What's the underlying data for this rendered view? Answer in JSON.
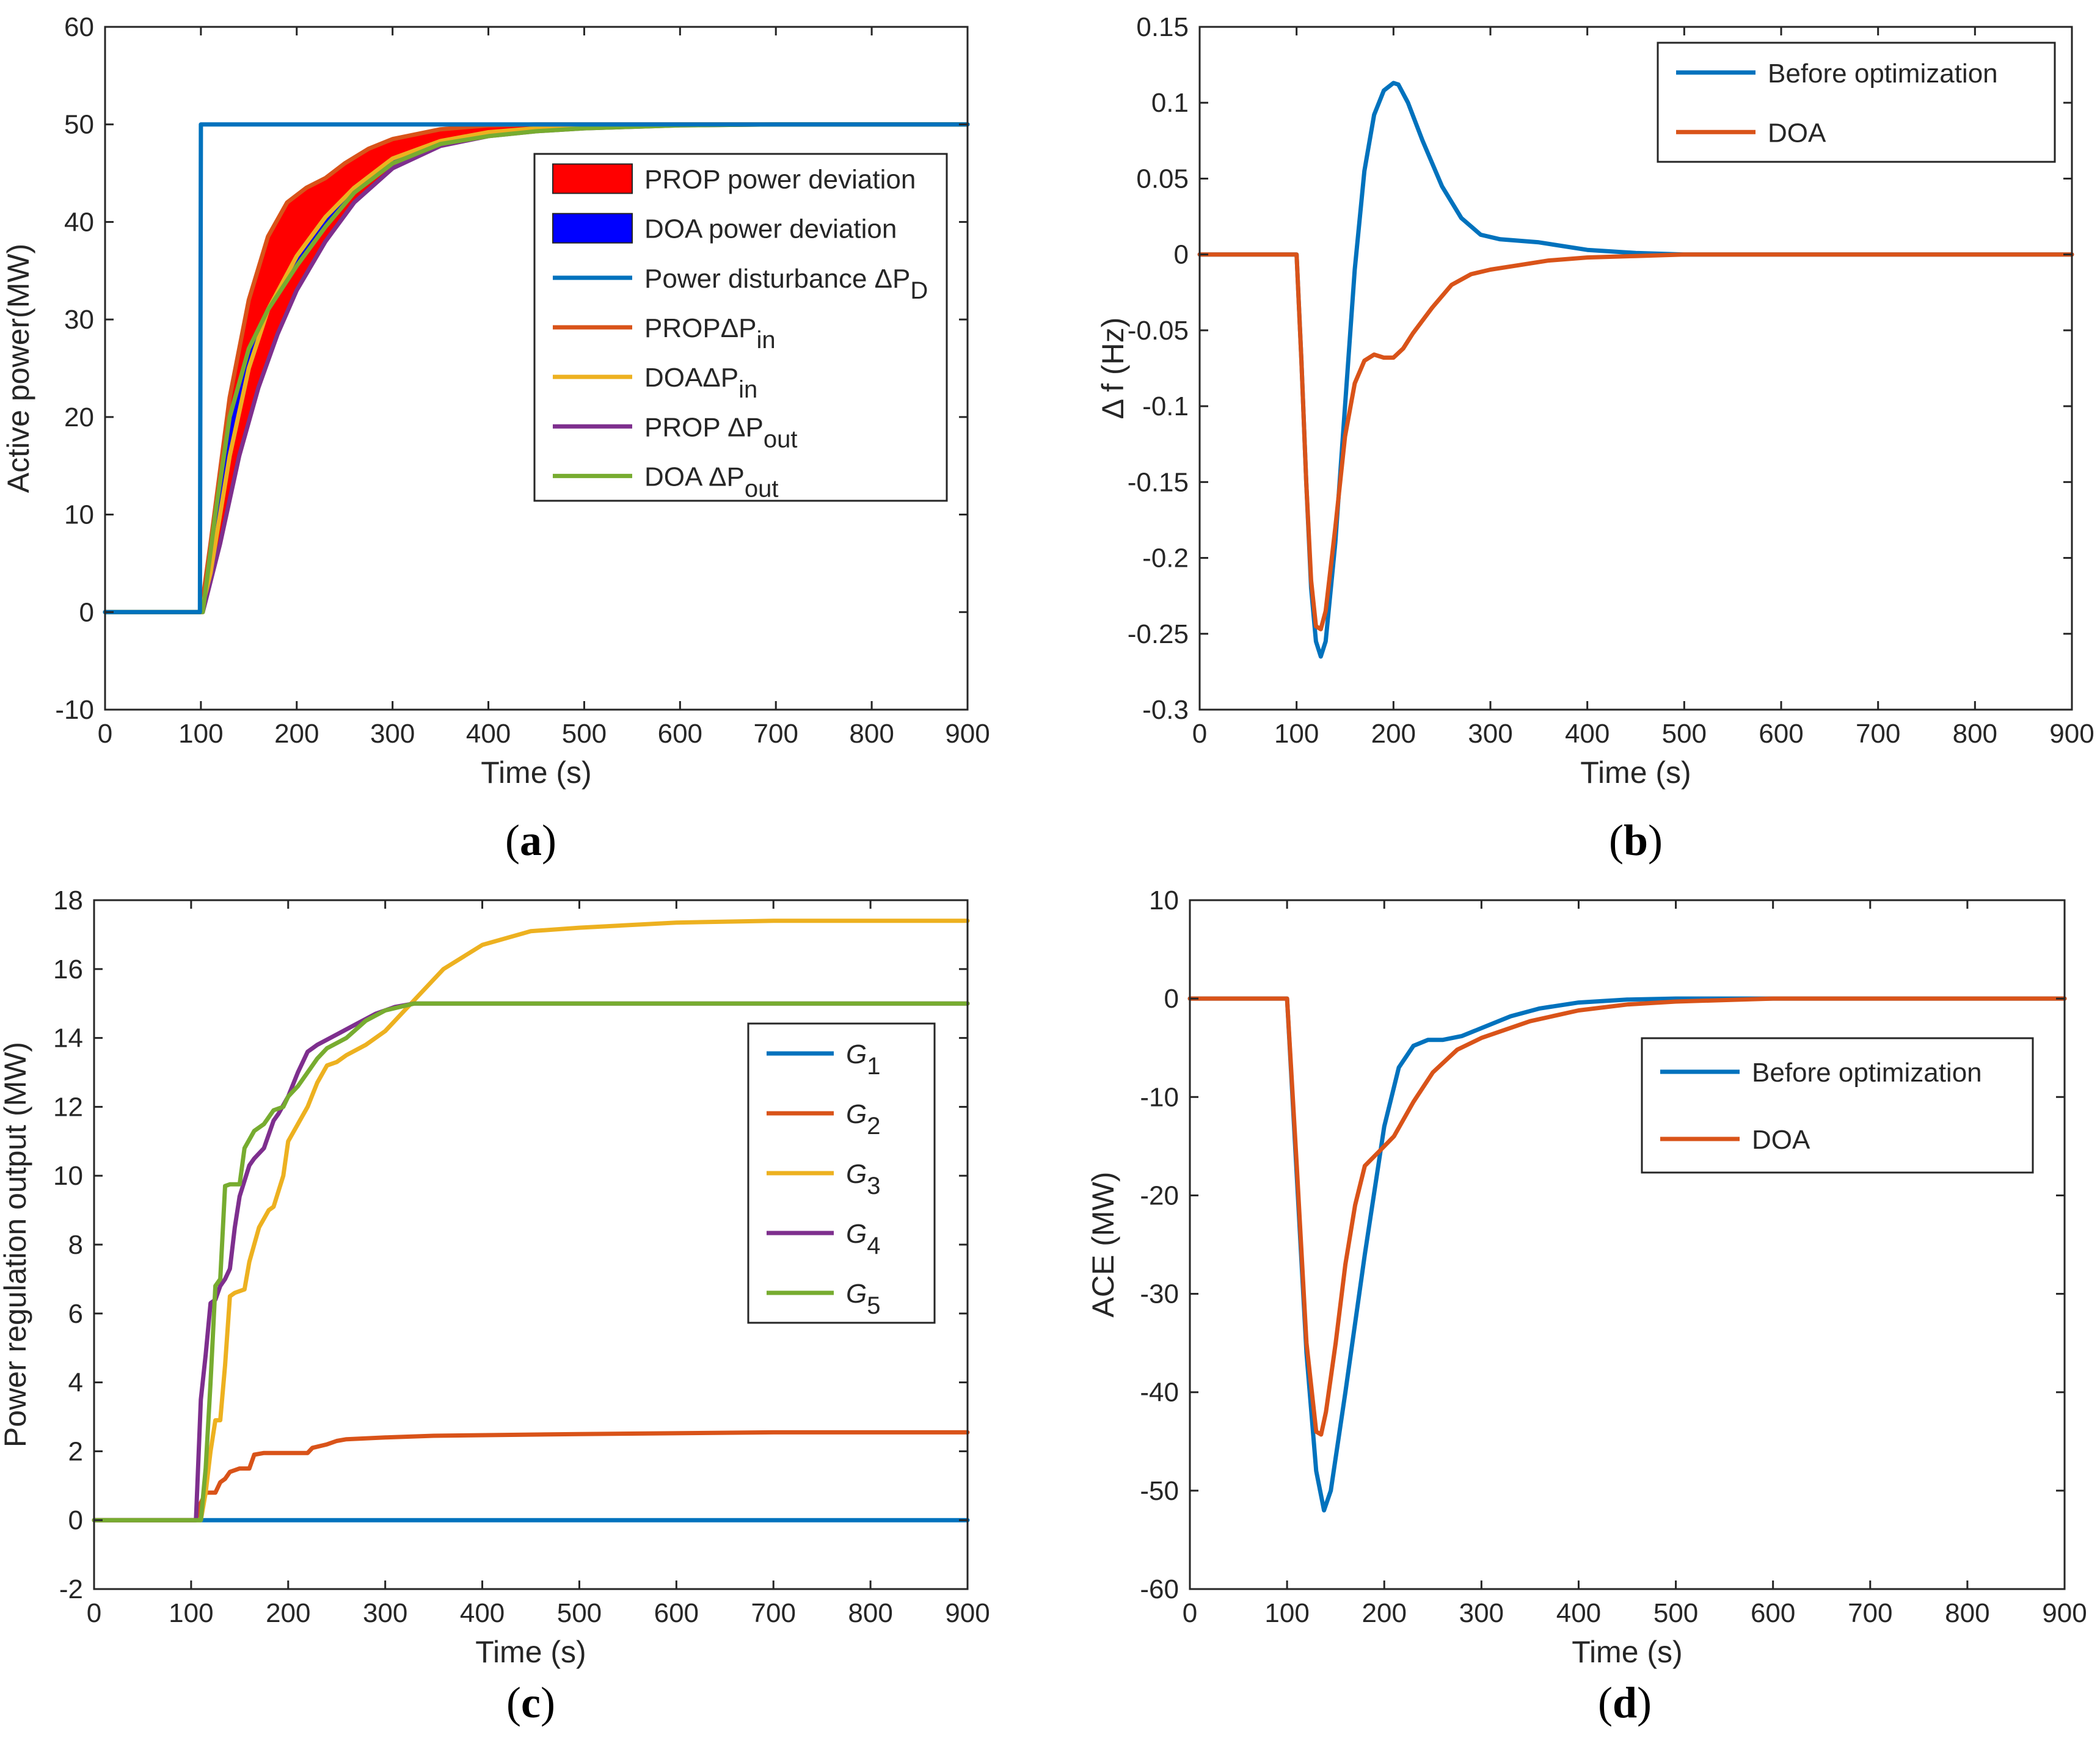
{
  "colors": {
    "blue": "#0072bd",
    "orange": "#d95319",
    "yellow": "#edb120",
    "purple": "#7e2f8e",
    "green": "#77ac30",
    "fill_red": "#ff0000",
    "fill_blue": "#0000ff"
  },
  "chart_data": [
    {
      "id": "a",
      "caption": "a",
      "type": "line",
      "xlabel": "Time (s)",
      "ylabel": "Active power(MW)",
      "xlim": [
        0,
        900
      ],
      "ylim": [
        -10,
        60
      ],
      "xticks": [
        0,
        100,
        200,
        300,
        400,
        500,
        600,
        700,
        800,
        900
      ],
      "yticks": [
        -10,
        0,
        10,
        20,
        30,
        40,
        50,
        60
      ],
      "legend_position": "upper-right",
      "fills": [
        {
          "name": "PROP power deviation",
          "color_key": "fill_red",
          "upper": "PROP ΔPin",
          "lower": "PROP ΔPout"
        },
        {
          "name": "DOA power deviation",
          "color_key": "fill_blue",
          "upper": "DOA ΔPin",
          "lower": "DOA ΔPout"
        }
      ],
      "series": [
        {
          "key": "pd",
          "name": "Power disturbance ΔP",
          "sub": "D",
          "color_key": "blue",
          "x": [
            0,
            99,
            100,
            900
          ],
          "y": [
            0,
            0,
            50,
            50
          ]
        },
        {
          "key": "prop_in",
          "name": "PROPΔP",
          "sub": "in",
          "color_key": "orange",
          "x": [
            0,
            100,
            110,
            130,
            150,
            170,
            190,
            210,
            230,
            250,
            275,
            300,
            350,
            400,
            450,
            500,
            600,
            900
          ],
          "y": [
            0,
            0,
            7,
            22,
            32,
            38.5,
            42,
            43.5,
            44.5,
            46,
            47.5,
            48.5,
            49.5,
            49.9,
            50,
            50,
            50,
            50
          ]
        },
        {
          "key": "doa_in",
          "name": "DOAΔP",
          "sub": "in",
          "color_key": "yellow",
          "x": [
            0,
            100,
            110,
            130,
            150,
            170,
            200,
            230,
            260,
            300,
            350,
            400,
            450,
            500,
            600,
            700,
            900
          ],
          "y": [
            0,
            0,
            4,
            16,
            25,
            31,
            36.5,
            40.5,
            43.5,
            46.5,
            48.3,
            49.2,
            49.6,
            49.8,
            50,
            50,
            50
          ]
        },
        {
          "key": "prop_out",
          "name": "PROP ΔP",
          "sub": "out",
          "color_key": "purple",
          "x": [
            0,
            102,
            120,
            140,
            160,
            180,
            200,
            230,
            260,
            300,
            350,
            400,
            450,
            500,
            600,
            700,
            900
          ],
          "y": [
            0,
            0,
            7,
            16,
            23,
            28.5,
            33,
            38,
            42,
            45.5,
            47.8,
            48.8,
            49.3,
            49.6,
            49.9,
            50,
            50
          ]
        },
        {
          "key": "doa_out",
          "name": "DOA ΔP",
          "sub": "out",
          "color_key": "green",
          "x": [
            0,
            102,
            115,
            130,
            150,
            170,
            200,
            230,
            260,
            300,
            350,
            400,
            450,
            500,
            600,
            700,
            900
          ],
          "y": [
            0,
            0,
            10,
            20,
            27,
            31,
            35.5,
            39.5,
            43,
            46,
            48,
            48.8,
            49.3,
            49.6,
            49.9,
            50,
            50
          ]
        }
      ]
    },
    {
      "id": "b",
      "caption": "b",
      "type": "line",
      "xlabel": "Time (s)",
      "ylabel": "Δ f (Hz)",
      "xlim": [
        0,
        900
      ],
      "ylim": [
        -0.3,
        0.15
      ],
      "xticks": [
        0,
        100,
        200,
        300,
        400,
        500,
        600,
        700,
        800,
        900
      ],
      "yticks": [
        -0.3,
        -0.25,
        -0.2,
        -0.15,
        -0.1,
        -0.05,
        0,
        0.05,
        0.1,
        0.15
      ],
      "legend_position": "upper-right",
      "series": [
        {
          "key": "before",
          "name": "Before optimization",
          "color_key": "blue",
          "x": [
            0,
            100,
            105,
            110,
            115,
            120,
            125,
            130,
            140,
            150,
            160,
            170,
            180,
            190,
            200,
            205,
            215,
            230,
            250,
            270,
            290,
            310,
            350,
            400,
            450,
            500,
            600,
            900
          ],
          "y": [
            0,
            0,
            -0.07,
            -0.15,
            -0.22,
            -0.255,
            -0.265,
            -0.255,
            -0.19,
            -0.1,
            -0.01,
            0.055,
            0.092,
            0.108,
            0.113,
            0.112,
            0.1,
            0.075,
            0.045,
            0.024,
            0.013,
            0.01,
            0.008,
            0.003,
            0.001,
            0,
            0,
            0
          ]
        },
        {
          "key": "doa",
          "name": "DOA",
          "color_key": "orange",
          "x": [
            0,
            100,
            105,
            110,
            115,
            120,
            125,
            130,
            140,
            150,
            160,
            170,
            180,
            190,
            200,
            210,
            220,
            240,
            260,
            280,
            300,
            330,
            360,
            400,
            450,
            500,
            900
          ],
          "y": [
            0,
            0,
            -0.07,
            -0.15,
            -0.215,
            -0.245,
            -0.247,
            -0.235,
            -0.18,
            -0.12,
            -0.085,
            -0.07,
            -0.066,
            -0.068,
            -0.068,
            -0.062,
            -0.052,
            -0.035,
            -0.02,
            -0.013,
            -0.01,
            -0.007,
            -0.004,
            -0.002,
            -0.001,
            0,
            0
          ]
        }
      ]
    },
    {
      "id": "c",
      "caption": "c",
      "type": "line",
      "xlabel": "Time (s)",
      "ylabel": "Power regulation output (MW)",
      "xlim": [
        0,
        900
      ],
      "ylim": [
        -2,
        18
      ],
      "xticks": [
        0,
        100,
        200,
        300,
        400,
        500,
        600,
        700,
        800,
        900
      ],
      "yticks": [
        -2,
        0,
        2,
        4,
        6,
        8,
        10,
        12,
        14,
        16,
        18
      ],
      "legend_position": "right",
      "series": [
        {
          "key": "g1",
          "name": "G",
          "sub": "1",
          "color_key": "blue",
          "x": [
            0,
            900
          ],
          "y": [
            0,
            0
          ]
        },
        {
          "key": "g2",
          "name": "G",
          "sub": "2",
          "color_key": "orange",
          "x": [
            0,
            105,
            110,
            115,
            125,
            130,
            135,
            140,
            150,
            160,
            165,
            175,
            220,
            225,
            240,
            250,
            260,
            300,
            350,
            500,
            700,
            900
          ],
          "y": [
            0,
            0,
            0.5,
            0.8,
            0.8,
            1.1,
            1.2,
            1.4,
            1.5,
            1.5,
            1.9,
            1.95,
            1.95,
            2.1,
            2.2,
            2.3,
            2.35,
            2.4,
            2.45,
            2.5,
            2.55,
            2.55
          ]
        },
        {
          "key": "g3",
          "name": "G",
          "sub": "3",
          "color_key": "yellow",
          "x": [
            0,
            110,
            115,
            120,
            125,
            130,
            135,
            140,
            145,
            155,
            160,
            170,
            180,
            185,
            195,
            200,
            210,
            220,
            230,
            240,
            250,
            260,
            280,
            300,
            320,
            340,
            360,
            400,
            450,
            500,
            600,
            700,
            900
          ],
          "y": [
            0,
            0,
            0.8,
            2.0,
            2.9,
            2.9,
            4.5,
            6.5,
            6.6,
            6.7,
            7.5,
            8.5,
            9.0,
            9.1,
            10.0,
            11.0,
            11.5,
            12.0,
            12.7,
            13.2,
            13.3,
            13.5,
            13.8,
            14.2,
            14.8,
            15.4,
            16.0,
            16.7,
            17.1,
            17.2,
            17.35,
            17.4,
            17.4
          ]
        },
        {
          "key": "g4",
          "name": "G",
          "sub": "4",
          "color_key": "purple",
          "x": [
            0,
            105,
            110,
            115,
            120,
            125,
            130,
            135,
            140,
            145,
            150,
            160,
            165,
            175,
            185,
            190,
            200,
            210,
            220,
            230,
            250,
            270,
            290,
            310,
            330,
            900
          ],
          "y": [
            0,
            0,
            3.5,
            4.8,
            6.3,
            6.4,
            6.8,
            7.0,
            7.3,
            8.5,
            9.4,
            10.3,
            10.5,
            10.8,
            11.6,
            11.8,
            12.3,
            13.0,
            13.6,
            13.8,
            14.1,
            14.4,
            14.7,
            14.9,
            15.0,
            15.0
          ]
        },
        {
          "key": "g5",
          "name": "G",
          "sub": "5",
          "color_key": "green",
          "x": [
            0,
            110,
            115,
            120,
            125,
            130,
            135,
            140,
            150,
            155,
            165,
            175,
            185,
            195,
            200,
            210,
            220,
            230,
            240,
            260,
            280,
            300,
            330,
            900
          ],
          "y": [
            0,
            0,
            1.5,
            4.0,
            6.8,
            7.0,
            9.7,
            9.75,
            9.75,
            10.8,
            11.3,
            11.5,
            11.9,
            12.0,
            12.3,
            12.6,
            13.0,
            13.4,
            13.7,
            14.0,
            14.5,
            14.8,
            15.0,
            15.0
          ]
        }
      ]
    },
    {
      "id": "d",
      "caption": "d",
      "type": "line",
      "xlabel": "Time (s)",
      "ylabel": "ACE (MW)",
      "xlim": [
        0,
        900
      ],
      "ylim": [
        -60,
        10
      ],
      "xticks": [
        0,
        100,
        200,
        300,
        400,
        500,
        600,
        700,
        800,
        900
      ],
      "yticks": [
        -60,
        -50,
        -40,
        -30,
        -20,
        -10,
        0,
        10
      ],
      "legend_position": "right",
      "series": [
        {
          "key": "before",
          "name": "Before optimization",
          "color_key": "blue",
          "x": [
            0,
            100,
            110,
            120,
            130,
            138,
            145,
            160,
            180,
            200,
            215,
            230,
            245,
            260,
            280,
            300,
            330,
            360,
            400,
            450,
            500,
            600,
            900
          ],
          "y": [
            0,
            0,
            -18,
            -36,
            -48,
            -52,
            -50,
            -40,
            -26,
            -13,
            -7,
            -4.8,
            -4.2,
            -4.2,
            -3.8,
            -3,
            -1.8,
            -1,
            -0.4,
            -0.1,
            0,
            0,
            0
          ]
        },
        {
          "key": "doa",
          "name": "DOA",
          "color_key": "orange",
          "x": [
            0,
            100,
            110,
            120,
            130,
            135,
            140,
            150,
            160,
            170,
            180,
            195,
            210,
            230,
            250,
            275,
            300,
            350,
            400,
            450,
            500,
            600,
            900
          ],
          "y": [
            0,
            0,
            -17,
            -35,
            -44,
            -44.3,
            -42,
            -35,
            -27,
            -21,
            -17,
            -15.5,
            -14,
            -10.5,
            -7.5,
            -5.2,
            -4,
            -2.3,
            -1.2,
            -0.6,
            -0.3,
            0,
            0
          ]
        }
      ]
    }
  ]
}
